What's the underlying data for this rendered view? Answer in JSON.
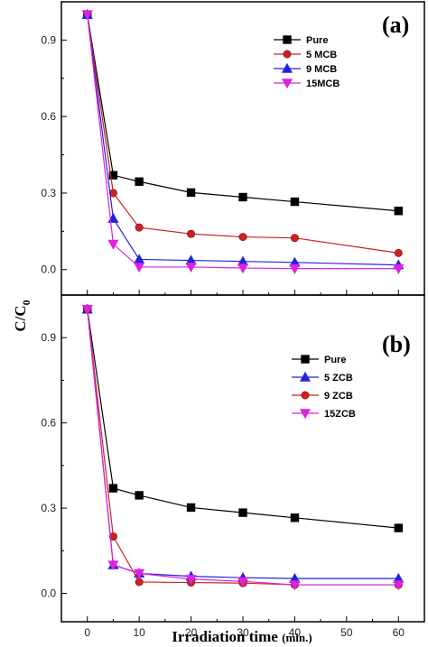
{
  "figure": {
    "xlabel": "Irradiation time",
    "xlabel_unit": "(min.)",
    "ylabel_main": "C/C",
    "ylabel_sub": "0"
  },
  "chart_data": [
    {
      "type": "line",
      "panel_label": "(a)",
      "x": [
        0,
        5,
        10,
        20,
        30,
        40,
        60
      ],
      "xlim": [
        -5,
        65
      ],
      "ylim": [
        -0.1,
        1.05
      ],
      "yticks": [
        "0.0",
        "0.3",
        "0.6",
        "0.9"
      ],
      "ytick_values": [
        0.0,
        0.3,
        0.6,
        0.9
      ],
      "xticks": [
        0,
        10,
        20,
        30,
        40,
        50,
        60
      ],
      "legend_position": "top-right",
      "series": [
        {
          "name": "Pure",
          "color": "#000000",
          "marker": "square",
          "values": [
            1.0,
            0.37,
            0.345,
            0.302,
            0.284,
            0.266,
            0.23
          ]
        },
        {
          "name": "5 MCB",
          "color": "#cc2222",
          "marker": "circle",
          "values": [
            1.0,
            0.3,
            0.165,
            0.14,
            0.128,
            0.124,
            0.065
          ]
        },
        {
          "name": "9 MCB",
          "color": "#2222dd",
          "marker": "triangle-up",
          "values": [
            1.0,
            0.2,
            0.04,
            0.036,
            0.032,
            0.028,
            0.018
          ]
        },
        {
          "name": "15MCB",
          "color": "#dd22dd",
          "marker": "triangle-down",
          "values": [
            1.0,
            0.1,
            0.01,
            0.01,
            0.006,
            0.004,
            0.004
          ]
        }
      ]
    },
    {
      "type": "line",
      "panel_label": "(b)",
      "x": [
        0,
        5,
        10,
        20,
        30,
        40,
        60
      ],
      "xlim": [
        -5,
        65
      ],
      "ylim": [
        -0.1,
        1.05
      ],
      "yticks": [
        "0.0",
        "0.3",
        "0.6",
        "0.9"
      ],
      "ytick_values": [
        0.0,
        0.3,
        0.6,
        0.9
      ],
      "xticks": [
        0,
        10,
        20,
        30,
        40,
        50,
        60
      ],
      "xtick_labels": [
        "0",
        "10",
        "20",
        "30",
        "40",
        "50",
        "60"
      ],
      "legend_position": "right",
      "series": [
        {
          "name": "Pure",
          "color": "#000000",
          "marker": "square",
          "values": [
            1.0,
            0.37,
            0.345,
            0.302,
            0.284,
            0.266,
            0.23
          ]
        },
        {
          "name": "5 ZCB",
          "color": "#2222dd",
          "marker": "triangle-up",
          "values": [
            1.0,
            0.1,
            0.07,
            0.06,
            0.055,
            0.052,
            0.052
          ]
        },
        {
          "name": "9 ZCB",
          "color": "#cc2222",
          "marker": "circle",
          "values": [
            1.0,
            0.2,
            0.04,
            0.038,
            0.036,
            0.03,
            0.03
          ]
        },
        {
          "name": "15ZCB",
          "color": "#dd22dd",
          "marker": "triangle-down",
          "values": [
            1.0,
            0.1,
            0.07,
            0.05,
            0.042,
            0.03,
            0.03
          ]
        }
      ]
    }
  ]
}
